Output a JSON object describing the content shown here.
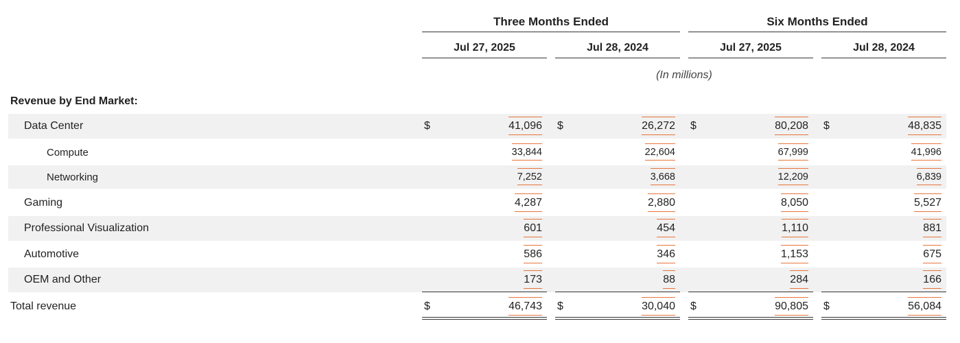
{
  "header": {
    "groups": [
      {
        "label": "Three Months Ended"
      },
      {
        "label": "Six Months Ended"
      }
    ],
    "dates": [
      {
        "label": "Jul 27, 2025"
      },
      {
        "label": "Jul 28, 2024"
      },
      {
        "label": "Jul 27, 2025"
      },
      {
        "label": "Jul 28, 2024"
      }
    ],
    "units_note": "(In millions)"
  },
  "section_title": "Revenue by End Market:",
  "currency_symbol": "$",
  "rows": [
    {
      "label": "Data Center",
      "values": [
        "41,096",
        "26,272",
        "80,208",
        "48,835"
      ]
    },
    {
      "label": "Compute",
      "values": [
        "33,844",
        "22,604",
        "67,999",
        "41,996"
      ]
    },
    {
      "label": "Networking",
      "values": [
        "7,252",
        "3,668",
        "12,209",
        "6,839"
      ]
    },
    {
      "label": "Gaming",
      "values": [
        "4,287",
        "2,880",
        "8,050",
        "5,527"
      ]
    },
    {
      "label": "Professional Visualization",
      "values": [
        "601",
        "454",
        "1,110",
        "881"
      ]
    },
    {
      "label": "Automotive",
      "values": [
        "586",
        "346",
        "1,153",
        "675"
      ]
    },
    {
      "label": "OEM and Other",
      "values": [
        "173",
        "88",
        "284",
        "166"
      ]
    }
  ],
  "total": {
    "label": "Total revenue",
    "values": [
      "46,743",
      "30,040",
      "90,805",
      "56,084"
    ]
  },
  "colors": {
    "highlight_underline": "#e8743b",
    "row_shade": "#f1f1f1"
  }
}
